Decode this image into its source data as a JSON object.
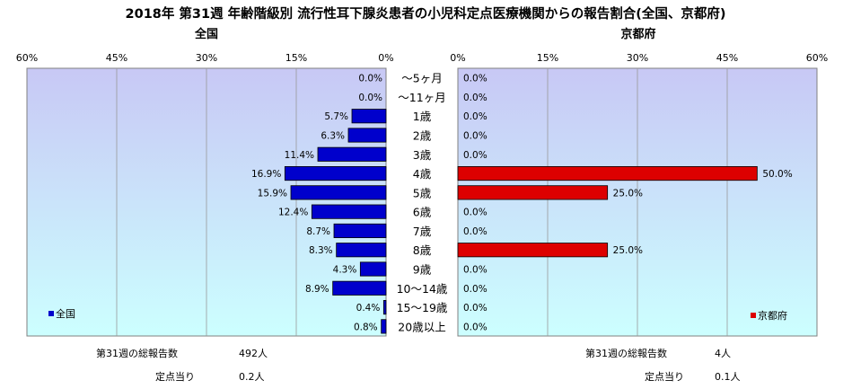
{
  "title": "2018年 第31週 年齢階級別 流行性耳下腺炎患者の小児科定点医療機関からの報告割合(全国、京都府)",
  "colors": {
    "national_bar": "#0000cc",
    "kyoto_bar": "#dd0000",
    "plot_top": "#c8c8f5",
    "plot_bottom": "#ccffff"
  },
  "chart_data": [
    {
      "type": "bar",
      "orientation": "horizontal",
      "direction": "right-to-left",
      "title": "全国",
      "categories": [
        "～5ヶ月",
        "～11ヶ月",
        "1歳",
        "2歳",
        "3歳",
        "4歳",
        "5歳",
        "6歳",
        "7歳",
        "8歳",
        "9歳",
        "10～14歳",
        "15～19歳",
        "20歳以上"
      ],
      "series": [
        {
          "name": "全国",
          "values": [
            0.0,
            0.0,
            5.7,
            6.3,
            11.4,
            16.9,
            15.9,
            12.4,
            8.7,
            8.3,
            4.3,
            8.9,
            0.4,
            0.8
          ]
        }
      ],
      "data_labels": [
        "0.0%",
        "0.0%",
        "5.7%",
        "6.3%",
        "11.4%",
        "16.9%",
        "15.9%",
        "12.4%",
        "8.7%",
        "8.3%",
        "4.3%",
        "8.9%",
        "0.4%",
        "0.8%"
      ],
      "xlim": [
        0,
        60
      ],
      "xticks": [
        60,
        45,
        30,
        15,
        0
      ],
      "xtick_labels": [
        "60%",
        "45%",
        "30%",
        "15%",
        "0%"
      ],
      "grid": true,
      "legend_position": "bottom-left"
    },
    {
      "type": "bar",
      "orientation": "horizontal",
      "direction": "left-to-right",
      "title": "京都府",
      "categories": [
        "～5ヶ月",
        "～11ヶ月",
        "1歳",
        "2歳",
        "3歳",
        "4歳",
        "5歳",
        "6歳",
        "7歳",
        "8歳",
        "9歳",
        "10～14歳",
        "15～19歳",
        "20歳以上"
      ],
      "series": [
        {
          "name": "京都府",
          "values": [
            0.0,
            0.0,
            0.0,
            0.0,
            0.0,
            50.0,
            25.0,
            0.0,
            0.0,
            25.0,
            0.0,
            0.0,
            0.0,
            0.0
          ]
        }
      ],
      "data_labels": [
        "0.0%",
        "0.0%",
        "0.0%",
        "0.0%",
        "0.0%",
        "50.0%",
        "25.0%",
        "0.0%",
        "0.0%",
        "25.0%",
        "0.0%",
        "0.0%",
        "0.0%",
        "0.0%"
      ],
      "xlim": [
        0,
        60
      ],
      "xticks": [
        0,
        15,
        30,
        45,
        60
      ],
      "xtick_labels": [
        "0%",
        "15%",
        "30%",
        "45%",
        "60%"
      ],
      "grid": true,
      "legend_position": "bottom-right"
    }
  ],
  "summary": {
    "national": {
      "total_label": "第31週の総報告数",
      "total_value": "492人",
      "per_site_label": "定点当り",
      "per_site_value": "0.2人"
    },
    "kyoto": {
      "total_label": "第31週の総報告数",
      "total_value": "4人",
      "per_site_label": "定点当り",
      "per_site_value": "0.1人"
    }
  }
}
